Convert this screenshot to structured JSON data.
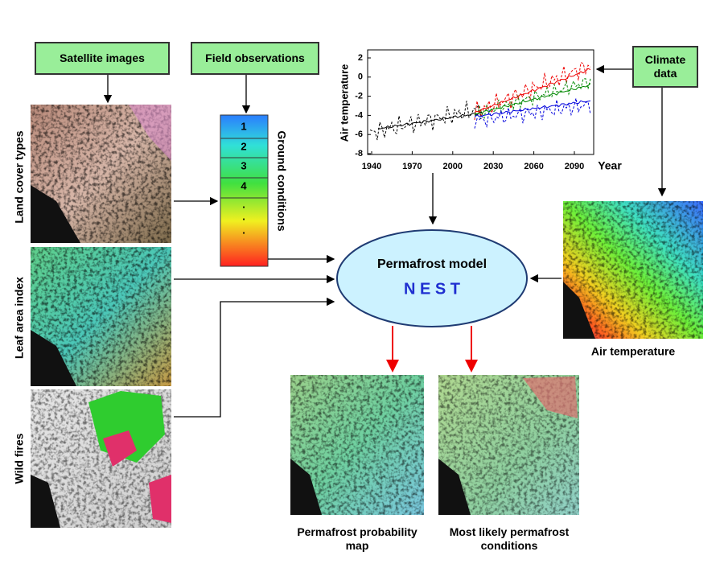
{
  "inputs": {
    "satellite": "Satellite images",
    "field": "Field observations",
    "climate": "Climate data"
  },
  "image_labels": [
    "Land cover types",
    "Leaf area index",
    "Wild fires"
  ],
  "ground_conditions": {
    "title": "Ground conditions",
    "levels": [
      "1",
      "2",
      "3",
      "4",
      ".",
      ".",
      "."
    ]
  },
  "chart": {
    "y_label": "Air temperature",
    "x_label": "Year",
    "yticks": [
      "2",
      "0",
      "-2",
      "-4",
      "-6",
      "-8"
    ],
    "xticks": [
      "1940",
      "1970",
      "2000",
      "2030",
      "2060",
      "2090"
    ]
  },
  "model": {
    "title": "Permafrost model",
    "name": "N E S T"
  },
  "air_temperature_map": "Air temperature",
  "outputs": [
    "Permafrost probability map",
    "Most likely permafrost conditions"
  ]
}
